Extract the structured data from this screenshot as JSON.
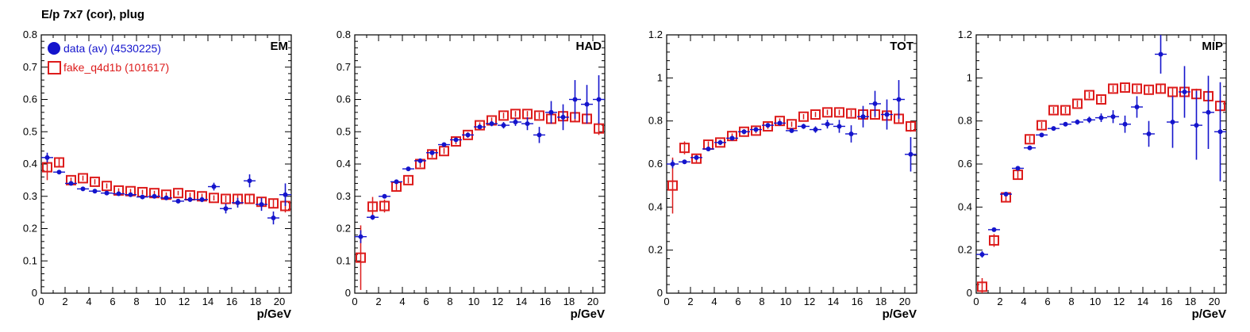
{
  "figure": {
    "title": "E/p 7x7 (cor), plug",
    "x_axis_label": "p/GeV",
    "colors": {
      "data": "#1414cc",
      "fake": "#dd1c1c"
    },
    "legend": {
      "data_label": "data (av) (4530225)",
      "fake_label": "fake_q4d1b (101617)",
      "placement": "top-left of first panel"
    }
  },
  "chart_data": [
    {
      "type": "scatter",
      "panel_label": "EM",
      "xlabel": "p/GeV",
      "ylabel": "",
      "xlim": [
        0,
        21
      ],
      "ylim": [
        0,
        0.8
      ],
      "xticks": [
        0,
        2,
        4,
        6,
        8,
        10,
        12,
        14,
        16,
        18,
        20
      ],
      "yticks": [
        0,
        0.1,
        0.2,
        0.3,
        0.4,
        0.5,
        0.6,
        0.7,
        0.8
      ],
      "ytick_labels": [
        "0",
        "0.1",
        "0.2",
        "0.3",
        "0.4",
        "0.5",
        "0.6",
        "0.7",
        "0.8"
      ],
      "grid": false,
      "x": [
        0.5,
        1.5,
        2.5,
        3.5,
        4.5,
        5.5,
        6.5,
        7.5,
        8.5,
        9.5,
        10.5,
        11.5,
        12.5,
        13.5,
        14.5,
        15.5,
        16.5,
        17.5,
        18.5,
        19.5,
        20.5
      ],
      "series": [
        {
          "name": "data (av) (4530225)",
          "marker": "filled-circle",
          "values": [
            0.42,
            0.375,
            0.34,
            0.323,
            0.316,
            0.31,
            0.308,
            0.305,
            0.298,
            0.3,
            0.295,
            0.285,
            0.29,
            0.29,
            0.33,
            0.262,
            0.28,
            0.348,
            0.275,
            0.233,
            0.305
          ],
          "errors": [
            0.015,
            0.005,
            0.004,
            0.004,
            0.004,
            0.004,
            0.004,
            0.004,
            0.005,
            0.005,
            0.005,
            0.006,
            0.007,
            0.008,
            0.012,
            0.015,
            0.015,
            0.02,
            0.02,
            0.02,
            0.035
          ]
        },
        {
          "name": "fake_q4d1b (101617)",
          "marker": "open-square",
          "values": [
            0.39,
            0.405,
            0.35,
            0.356,
            0.345,
            0.332,
            0.318,
            0.316,
            0.313,
            0.31,
            0.305,
            0.31,
            0.303,
            0.3,
            0.295,
            0.292,
            0.292,
            0.292,
            0.283,
            0.278,
            0.27
          ],
          "errors": [
            0.04,
            0.012,
            0.008,
            0.008,
            0.008,
            0.008,
            0.007,
            0.007,
            0.007,
            0.007,
            0.007,
            0.007,
            0.008,
            0.008,
            0.008,
            0.01,
            0.012,
            0.012,
            0.015,
            0.015,
            0.02
          ]
        }
      ]
    },
    {
      "type": "scatter",
      "panel_label": "HAD",
      "xlabel": "p/GeV",
      "ylabel": "",
      "xlim": [
        0,
        21
      ],
      "ylim": [
        0,
        0.8
      ],
      "xticks": [
        0,
        2,
        4,
        6,
        8,
        10,
        12,
        14,
        16,
        18,
        20
      ],
      "yticks": [
        0,
        0.1,
        0.2,
        0.3,
        0.4,
        0.5,
        0.6,
        0.7,
        0.8
      ],
      "ytick_labels": [
        "0",
        "0.1",
        "0.2",
        "0.3",
        "0.4",
        "0.5",
        "0.6",
        "0.7",
        "0.8"
      ],
      "grid": false,
      "x": [
        0.5,
        1.5,
        2.5,
        3.5,
        4.5,
        5.5,
        6.5,
        7.5,
        8.5,
        9.5,
        10.5,
        11.5,
        12.5,
        13.5,
        14.5,
        15.5,
        16.5,
        17.5,
        18.5,
        19.5,
        20.5
      ],
      "series": [
        {
          "name": "data (av) (4530225)",
          "marker": "filled-circle",
          "values": [
            0.175,
            0.235,
            0.3,
            0.345,
            0.385,
            0.41,
            0.435,
            0.46,
            0.475,
            0.49,
            0.515,
            0.525,
            0.52,
            0.53,
            0.525,
            0.49,
            0.56,
            0.545,
            0.6,
            0.585,
            0.6
          ],
          "errors": [
            0.02,
            0.008,
            0.005,
            0.004,
            0.004,
            0.004,
            0.004,
            0.004,
            0.005,
            0.006,
            0.007,
            0.008,
            0.01,
            0.012,
            0.02,
            0.025,
            0.035,
            0.04,
            0.06,
            0.06,
            0.075
          ]
        },
        {
          "name": "fake_q4d1b (101617)",
          "marker": "open-square",
          "values": [
            0.11,
            0.268,
            0.27,
            0.33,
            0.35,
            0.4,
            0.43,
            0.44,
            0.47,
            0.49,
            0.52,
            0.535,
            0.55,
            0.555,
            0.555,
            0.55,
            0.54,
            0.548,
            0.545,
            0.54,
            0.51
          ],
          "errors": [
            0.1,
            0.03,
            0.02,
            0.012,
            0.01,
            0.01,
            0.01,
            0.009,
            0.009,
            0.009,
            0.009,
            0.009,
            0.009,
            0.009,
            0.009,
            0.01,
            0.012,
            0.012,
            0.015,
            0.015,
            0.02
          ]
        }
      ]
    },
    {
      "type": "scatter",
      "panel_label": "TOT",
      "xlabel": "p/GeV",
      "ylabel": "",
      "xlim": [
        0,
        21
      ],
      "ylim": [
        0,
        1.2
      ],
      "xticks": [
        0,
        2,
        4,
        6,
        8,
        10,
        12,
        14,
        16,
        18,
        20
      ],
      "yticks": [
        0,
        0.2,
        0.4,
        0.6,
        0.8,
        1,
        1.2
      ],
      "ytick_labels": [
        "0",
        "0.2",
        "0.4",
        "0.6",
        "0.8",
        "1",
        "1.2"
      ],
      "grid": false,
      "x": [
        0.5,
        1.5,
        2.5,
        3.5,
        4.5,
        5.5,
        6.5,
        7.5,
        8.5,
        9.5,
        10.5,
        11.5,
        12.5,
        13.5,
        14.5,
        15.5,
        16.5,
        17.5,
        18.5,
        19.5,
        20.5
      ],
      "series": [
        {
          "name": "data (av) (4530225)",
          "marker": "filled-circle",
          "values": [
            0.6,
            0.61,
            0.63,
            0.67,
            0.7,
            0.72,
            0.75,
            0.76,
            0.78,
            0.79,
            0.755,
            0.775,
            0.76,
            0.785,
            0.775,
            0.74,
            0.82,
            0.88,
            0.83,
            0.9,
            0.645
          ],
          "errors": [
            0.02,
            0.01,
            0.007,
            0.006,
            0.006,
            0.006,
            0.006,
            0.006,
            0.007,
            0.008,
            0.01,
            0.012,
            0.015,
            0.02,
            0.03,
            0.04,
            0.05,
            0.06,
            0.07,
            0.09,
            0.08
          ]
        },
        {
          "name": "fake_q4d1b (101617)",
          "marker": "open-square",
          "values": [
            0.5,
            0.675,
            0.625,
            0.69,
            0.7,
            0.73,
            0.75,
            0.755,
            0.775,
            0.8,
            0.785,
            0.82,
            0.83,
            0.84,
            0.84,
            0.835,
            0.83,
            0.83,
            0.825,
            0.81,
            0.775
          ],
          "errors": [
            0.13,
            0.03,
            0.02,
            0.015,
            0.012,
            0.012,
            0.012,
            0.012,
            0.012,
            0.012,
            0.012,
            0.012,
            0.012,
            0.012,
            0.012,
            0.015,
            0.015,
            0.015,
            0.02,
            0.02,
            0.025
          ]
        }
      ]
    },
    {
      "type": "scatter",
      "panel_label": "MIP",
      "xlabel": "p/GeV",
      "ylabel": "",
      "xlim": [
        0,
        21
      ],
      "ylim": [
        0,
        1.2
      ],
      "xticks": [
        0,
        2,
        4,
        6,
        8,
        10,
        12,
        14,
        16,
        18,
        20
      ],
      "yticks": [
        0,
        0.2,
        0.4,
        0.6,
        0.8,
        1,
        1.2
      ],
      "ytick_labels": [
        "0",
        "0.2",
        "0.4",
        "0.6",
        "0.8",
        "1",
        "1.2"
      ],
      "grid": false,
      "x": [
        0.5,
        1.5,
        2.5,
        3.5,
        4.5,
        5.5,
        6.5,
        7.5,
        8.5,
        9.5,
        10.5,
        11.5,
        12.5,
        13.5,
        14.5,
        15.5,
        16.5,
        17.5,
        18.5,
        19.5,
        20.5
      ],
      "series": [
        {
          "name": "data (av) (4530225)",
          "marker": "filled-circle",
          "values": [
            0.18,
            0.295,
            0.46,
            0.58,
            0.675,
            0.735,
            0.765,
            0.785,
            0.795,
            0.805,
            0.815,
            0.82,
            0.785,
            0.865,
            0.74,
            1.11,
            0.795,
            0.935,
            0.78,
            0.84,
            0.75
          ],
          "errors": [
            0.015,
            0.008,
            0.006,
            0.006,
            0.006,
            0.007,
            0.008,
            0.009,
            0.012,
            0.015,
            0.02,
            0.03,
            0.04,
            0.05,
            0.06,
            0.09,
            0.12,
            0.12,
            0.16,
            0.17,
            0.23
          ]
        },
        {
          "name": "fake_q4d1b (101617)",
          "marker": "open-square",
          "values": [
            0.03,
            0.245,
            0.445,
            0.55,
            0.715,
            0.78,
            0.85,
            0.85,
            0.88,
            0.92,
            0.9,
            0.95,
            0.955,
            0.95,
            0.945,
            0.95,
            0.935,
            0.935,
            0.925,
            0.915,
            0.87
          ],
          "errors": [
            0.04,
            0.03,
            0.02,
            0.02,
            0.015,
            0.015,
            0.015,
            0.015,
            0.015,
            0.015,
            0.015,
            0.015,
            0.015,
            0.015,
            0.015,
            0.02,
            0.02,
            0.02,
            0.025,
            0.025,
            0.03
          ]
        }
      ]
    }
  ]
}
